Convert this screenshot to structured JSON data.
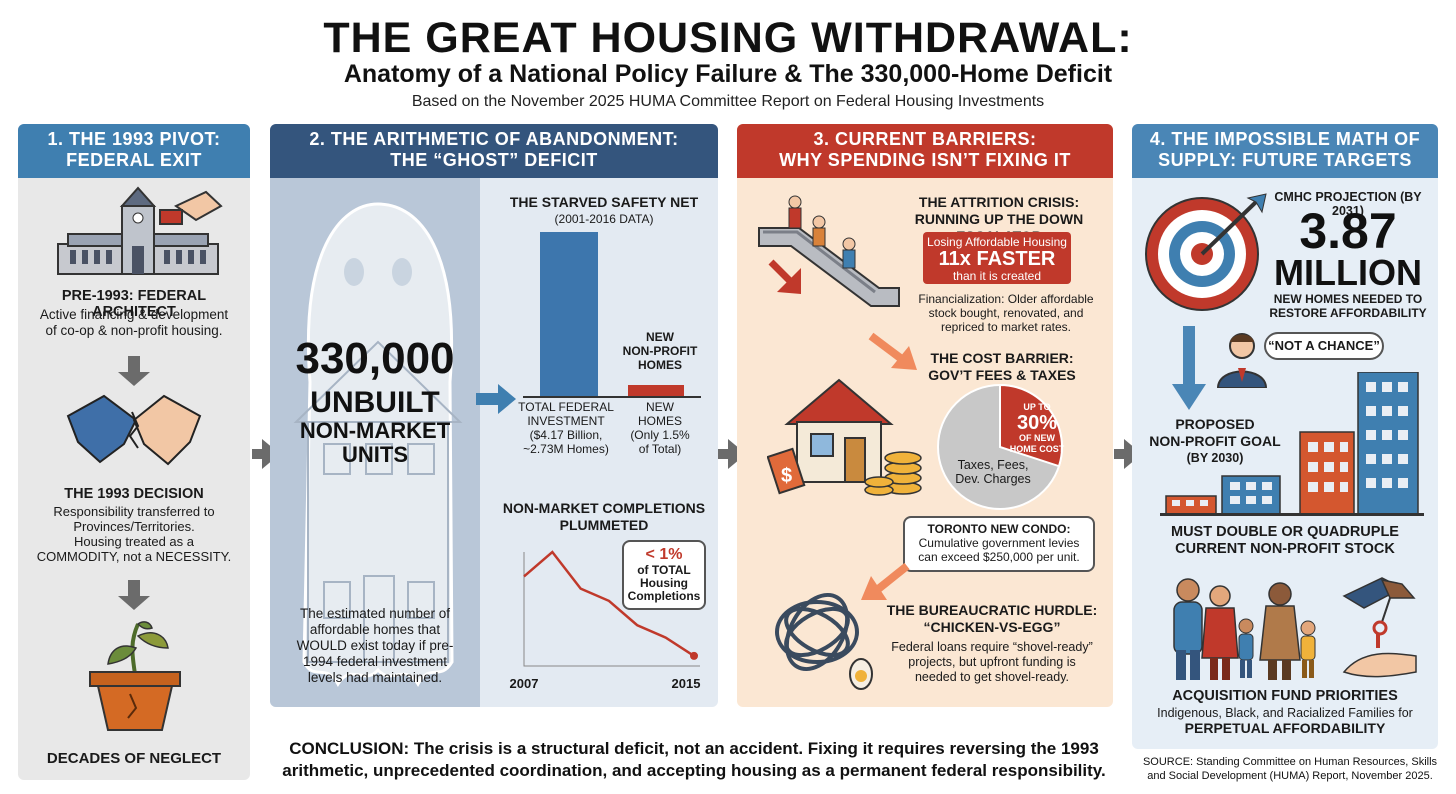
{
  "header": {
    "title": "THE GREAT HOUSING WITHDRAWAL:",
    "subtitle": "Anatomy of a National Policy Failure & The 330,000-Home Deficit",
    "basis": "Based on the November 2025 HUMA Committee Report on Federal Housing Investments"
  },
  "panel1": {
    "heading_line1": "1. THE 1993 PIVOT:",
    "heading_line2": "FEDERAL EXIT",
    "pre_title": "PRE-1993: FEDERAL ARCHITECT",
    "pre_body_1": "Active financing & development",
    "pre_body_2": "of co-op & non-profit housing.",
    "decision_title": "THE 1993 DECISION",
    "decision_body_1": "Responsibility transferred to",
    "decision_body_2": "Provinces/Territories.",
    "decision_body_3": "Housing treated as a",
    "decision_body_4": "COMMODITY, not a NECESSITY.",
    "neglect": "DECADES OF NEGLECT"
  },
  "panel2": {
    "heading_line1": "2. THE ARITHMETIC OF ABANDONMENT:",
    "heading_line2": "THE “GHOST” DEFICIT",
    "ghost_number": "330,000",
    "ghost_line1": "UNBUILT",
    "ghost_line2": "NON-MARKET",
    "ghost_line3": "UNITS",
    "ghost_caption_1": "The estimated number of",
    "ghost_caption_2": "affordable homes that",
    "ghost_caption_3": "WOULD exist today if pre-",
    "ghost_caption_4": "1994 federal investment",
    "ghost_caption_5": "levels had maintained.",
    "safety_net_title": "THE STARVED SAFETY NET",
    "safety_net_years": "(2001-2016 DATA)",
    "bar_new_label_1": "NEW",
    "bar_new_label_2": "NON-PROFIT",
    "bar_new_label_3": "HOMES",
    "bar1_cap_1": "TOTAL FEDERAL",
    "bar1_cap_2": "INVESTMENT",
    "bar1_cap_3": "($4.17 Billion,",
    "bar1_cap_4": "~2.73M Homes)",
    "bar2_cap_1": "NEW",
    "bar2_cap_2": "HOMES",
    "bar2_cap_3": "(Only 1.5%",
    "bar2_cap_4": "of Total)",
    "completions_title_1": "NON-MARKET COMPLETIONS",
    "completions_title_2": "PLUMMETED",
    "completions_callout_1": "< 1%",
    "completions_callout_2": "of TOTAL",
    "completions_callout_3": "Housing",
    "completions_callout_4": "Completions",
    "x_start": "2007",
    "x_end": "2015"
  },
  "panel3": {
    "heading_line1": "3. CURRENT BARRIERS:",
    "heading_line2": "WHY SPENDING ISN’T FIXING IT",
    "attrition_title_1": "THE ATTRITION CRISIS:",
    "attrition_title_2": "RUNNING UP THE DOWN ESCALATOR",
    "callout_1": "Losing Affordable Housing",
    "callout_2": "11x FASTER",
    "callout_3": "than it is created",
    "financial_1": "Financialization: Older affordable",
    "financial_2": "stock bought, renovated, and",
    "financial_3": "repriced to market rates.",
    "cost_title_1": "THE COST BARRIER:",
    "cost_title_2": "GOV’T FEES & TAXES",
    "pie_pct_1": "UP TO",
    "pie_pct_2": "30%",
    "pie_pct_3": "OF NEW",
    "pie_pct_4": "HOME COST",
    "pie_label_1": "Taxes, Fees,",
    "pie_label_2": "Dev. Charges",
    "pie_share": 0.3,
    "toronto_1": "TORONTO NEW CONDO:",
    "toronto_2": "Cumulative government levies",
    "toronto_3": "can exceed $250,000 per unit.",
    "bureau_title_1": "THE BUREAUCRATIC HURDLE:",
    "bureau_title_2": "“CHICKEN-VS-EGG”",
    "bureau_1": "Federal loans require “shovel-ready”",
    "bureau_2": "projects, but upfront funding is",
    "bureau_3": "needed to get shovel-ready."
  },
  "panel4": {
    "heading_line1": "4. THE IMPOSSIBLE MATH OF",
    "heading_line2": "SUPPLY: FUTURE TARGETS",
    "cmhc": "CMHC PROJECTION (BY 2031)",
    "big_number": "3.87",
    "big_unit": "MILLION",
    "needed_1": "NEW HOMES NEEDED TO",
    "needed_2": "RESTORE AFFORDABILITY",
    "quote": "“NOT A CHANCE”",
    "goal_1": "PROPOSED",
    "goal_2": "NON-PROFIT GOAL",
    "goal_3": "(BY 2030)",
    "double_1": "MUST DOUBLE OR QUADRUPLE",
    "double_2": "CURRENT NON-PROFIT STOCK",
    "acq_title": "ACQUISITION FUND PRIORITIES",
    "acq_body": "Indigenous, Black, and Racialized Families for",
    "acq_body_2": "PERPETUAL AFFORDABILITY"
  },
  "footer": {
    "conclusion_1": "CONCLUSION: The crisis is a structural deficit, not an accident. Fixing it requires reversing the 1993",
    "conclusion_2": "arithmetic, unprecedented coordination, and accepting housing as a permanent federal responsibility.",
    "source_1": "SOURCE: Standing Committee on Human Resources, Skills",
    "source_2": "and Social Development (HUMA) Report, November 2025."
  },
  "chart_data": [
    {
      "type": "bar",
      "title": "THE STARVED SAFETY NET",
      "subtitle": "(2001-2016 DATA)",
      "categories": [
        "TOTAL FEDERAL INVESTMENT",
        "NEW HOMES"
      ],
      "values": [
        100,
        1.5
      ],
      "ylabel": ""
    },
    {
      "type": "line",
      "title": "NON-MARKET COMPLETIONS PLUMMETED",
      "x": [
        "2007",
        "2008",
        "2009",
        "2010",
        "2011",
        "2012",
        "2015"
      ],
      "values": [
        7,
        9,
        6,
        5,
        3,
        2,
        0.5
      ]
    }
  ],
  "colors": {
    "blue": "#3f7fb0",
    "navy": "#34557d",
    "red": "#c0392b",
    "orange_bg": "#fbe7d3"
  }
}
